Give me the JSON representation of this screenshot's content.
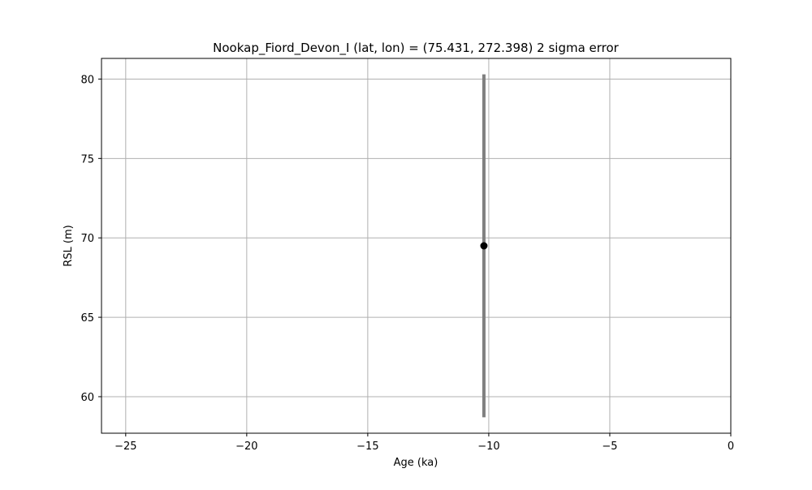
{
  "chart_data": {
    "type": "scatter",
    "title": "Nookap_Fiord_Devon_I (lat, lon) = (75.431, 272.398)  2 sigma error",
    "xlabel": "Age (ka)",
    "ylabel": "RSL (m)",
    "xlim": [
      -26,
      0
    ],
    "ylim": [
      57.7,
      81.3
    ],
    "xticks": [
      -25,
      -20,
      -15,
      -10,
      -5,
      0
    ],
    "xtick_labels": [
      "−25",
      "−20",
      "−15",
      "−10",
      "−5",
      "0"
    ],
    "yticks": [
      60,
      65,
      70,
      75,
      80
    ],
    "ytick_labels": [
      "60",
      "65",
      "70",
      "75",
      "80"
    ],
    "grid": true,
    "points": [
      {
        "x": -10.2,
        "y": 69.5,
        "y_low": 58.7,
        "y_high": 80.3
      }
    ],
    "colors": {
      "marker": "#000000",
      "errorbar": "#808080",
      "grid": "#b0b0b0",
      "axes": "#000000"
    }
  }
}
